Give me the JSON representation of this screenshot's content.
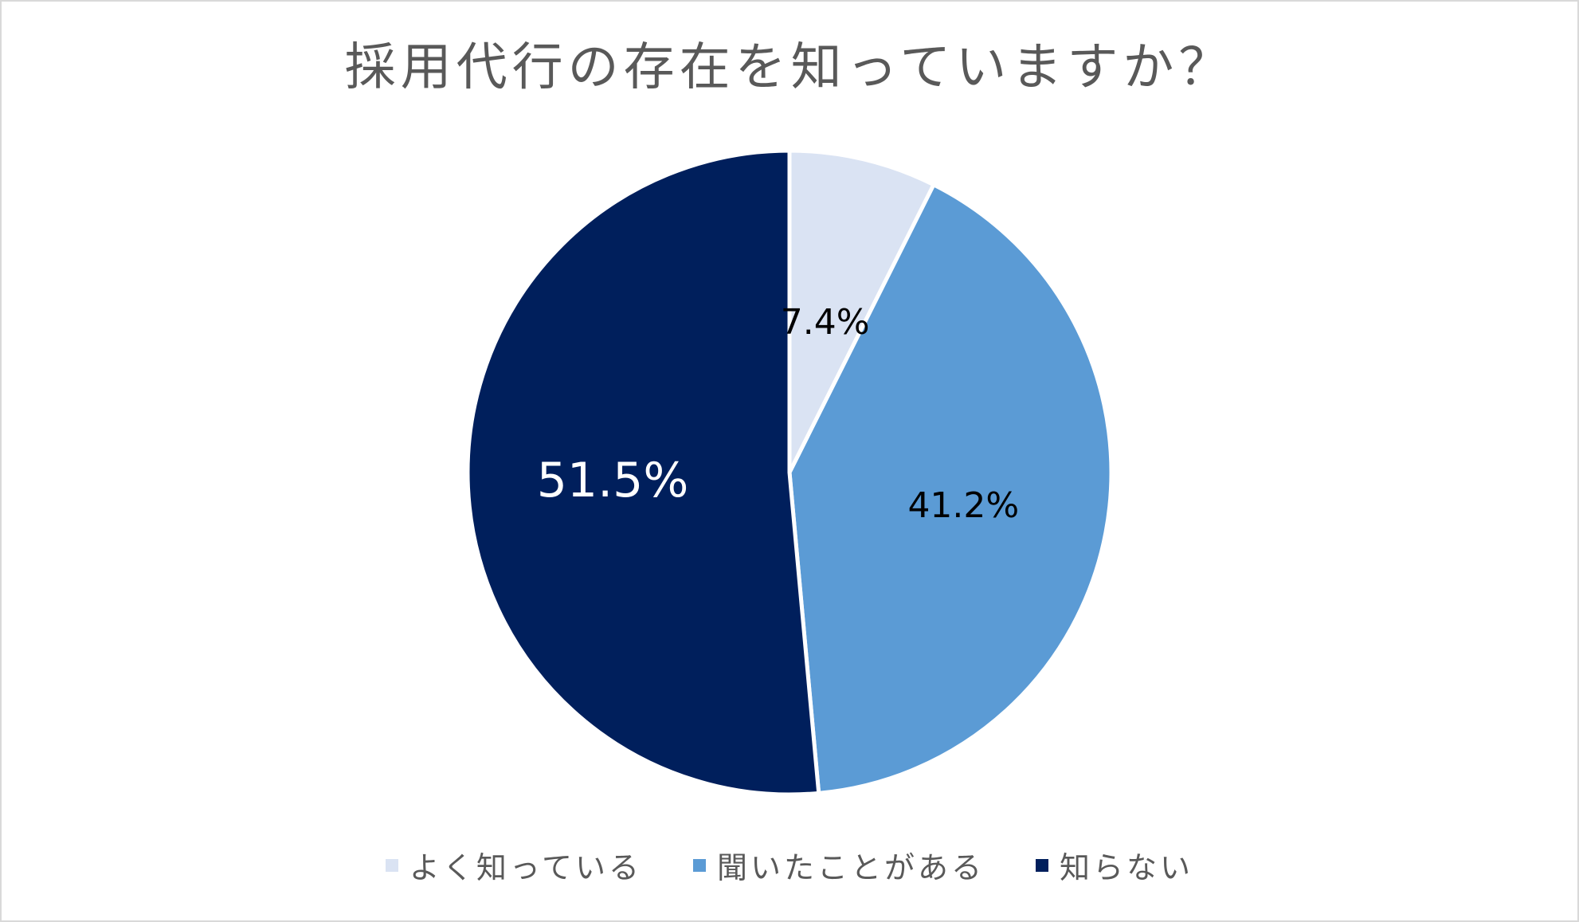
{
  "chart_data": {
    "type": "pie",
    "title": "採用代行の存在を知っていますか？",
    "unit": "%",
    "slices": [
      {
        "label": "よく知っている",
        "value": 7.4,
        "display": "7.4%",
        "color": "#dae3f3",
        "label_color": "#000000"
      },
      {
        "label": "聞いたことがある",
        "value": 41.2,
        "display": "41.2%",
        "color": "#5b9bd5",
        "label_color": "#000000"
      },
      {
        "label": "知らない",
        "value": 51.5,
        "display": "51.5%",
        "color": "#001f5c",
        "label_color": "#ffffff"
      }
    ],
    "start_angle": "12 o'clock",
    "direction": "clockwise",
    "legend_position": "bottom",
    "slice_border_color": "#ffffff"
  }
}
